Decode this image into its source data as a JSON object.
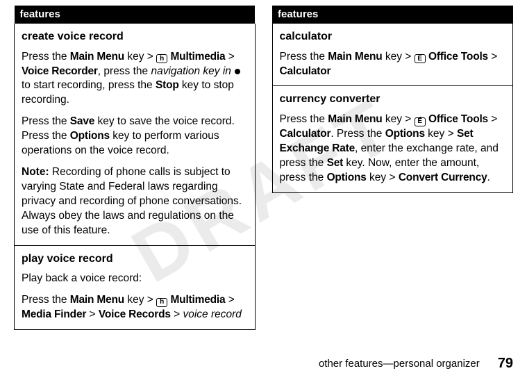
{
  "watermark": "DRAFT",
  "footer": {
    "section": "other features—personal organizer",
    "page": "79"
  },
  "left": {
    "header": "features",
    "cells": [
      {
        "title": "create voice record",
        "p1_a": "Press the ",
        "p1_b": "Main Menu",
        "p1_c": " key > ",
        "p1_icon": "h",
        "p1_d": " ",
        "p1_e": "Multimedia",
        "p1_f": " > ",
        "p1_g": "Voice Recorder",
        "p1_h": ", press the ",
        "p1_i": "navigation key in",
        "p1_j": " to start recording, press the ",
        "p1_k": "Stop",
        "p1_l": " key to stop recording.",
        "p2_a": "Press the ",
        "p2_b": "Save",
        "p2_c": " key to save the voice record. Press the ",
        "p2_d": "Options",
        "p2_e": " key to perform various operations on the voice record.",
        "p3_a": "Note:",
        "p3_b": " Recording of phone calls is subject to varying State and Federal laws regarding privacy and recording of phone conversations. Always obey the laws and regulations on the use of this feature."
      },
      {
        "title": "play voice record",
        "p1_a": "Play back a voice record:",
        "p2_a": "Press the ",
        "p2_b": "Main Menu",
        "p2_c": " key > ",
        "p2_icon": "h",
        "p2_e": "Multimedia",
        "p2_f": " > ",
        "p2_g": "Media Finder",
        "p2_h": " > ",
        "p2_i": "Voice Records",
        "p2_j": " > ",
        "p2_k": "voice record"
      }
    ]
  },
  "right": {
    "header": "features",
    "cells": [
      {
        "title": "calculator",
        "p1_a": "Press the ",
        "p1_b": "Main Menu",
        "p1_c": " key > ",
        "p1_icon": "É",
        "p1_e": "Office Tools",
        "p1_f": " > ",
        "p1_g": "Calculator"
      },
      {
        "title": "currency converter",
        "p1_a": "Press the ",
        "p1_b": "Main Menu",
        "p1_c": " key > ",
        "p1_icon": "É",
        "p1_e": "Office Tools",
        "p1_f": " > ",
        "p1_g": "Calculator",
        "p1_h": ". Press the ",
        "p1_i": "Options",
        "p1_j": " key > ",
        "p1_k": "Set Exchange Rate",
        "p1_l": ", enter the exchange rate, and press the ",
        "p1_m": "Set",
        "p1_n": " key. Now, enter the amount, press the ",
        "p1_o": "Options",
        "p1_p": " key > ",
        "p1_q": "Convert Currency",
        "p1_r": "."
      }
    ]
  }
}
